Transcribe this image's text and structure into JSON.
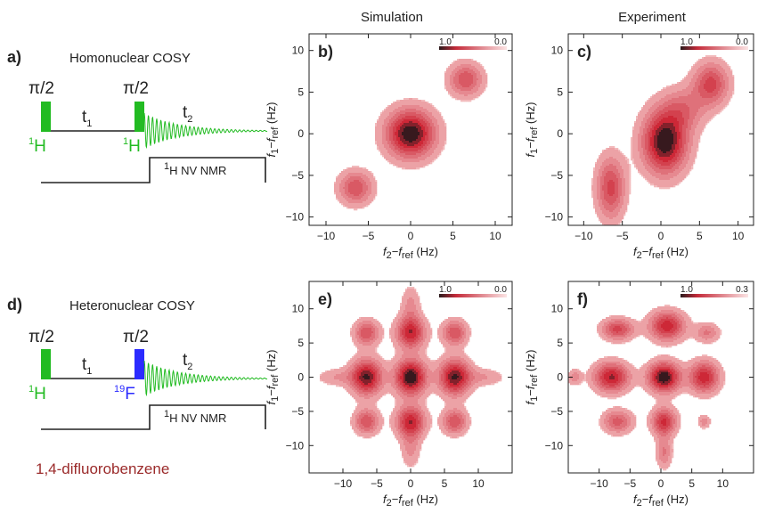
{
  "columns": {
    "simulation": "Simulation",
    "experiment": "Experiment"
  },
  "pulse_sequences": [
    {
      "label": "a)",
      "title": "Homonuclear COSY",
      "pulse1": {
        "angle": "π/2",
        "nucleus_mass": "1",
        "nucleus": "H",
        "color": "#22bb22"
      },
      "pulse2": {
        "angle": "π/2",
        "nucleus_mass": "1",
        "nucleus": "H",
        "color": "#22bb22"
      },
      "delay": "t",
      "delay_sub": "1",
      "acq": "t",
      "acq_sub": "2",
      "detect_mass": "1",
      "detect_text": "H NV NMR"
    },
    {
      "label": "d)",
      "title": "Heteronuclear COSY",
      "pulse1": {
        "angle": "π/2",
        "nucleus_mass": "1",
        "nucleus": "H",
        "color": "#22bb22"
      },
      "pulse2": {
        "angle": "π/2",
        "nucleus_mass": "19",
        "nucleus": "F",
        "color": "#2b2bff"
      },
      "delay": "t",
      "delay_sub": "1",
      "acq": "t",
      "acq_sub": "2",
      "detect_mass": "1",
      "detect_text": "H NV NMR"
    }
  ],
  "compound": "1,4-difluorobenzene",
  "axis_text": {
    "f1": "f",
    "f1_sub": "1",
    "f2": "f",
    "f2_sub": "2",
    "minus": "−",
    "ref": "f",
    "ref_sub": "ref",
    "unit": " (Hz)"
  },
  "chart_data": [
    {
      "type": "contour",
      "label": "b)",
      "colorbar": {
        "min": "1.0",
        "max": "0.0"
      },
      "xlim": [
        -12,
        12
      ],
      "ylim": [
        -11,
        12
      ],
      "xticks": [
        -10,
        -5,
        0,
        5,
        10
      ],
      "yticks": [
        -10,
        -5,
        0,
        5,
        10
      ],
      "peaks": [
        {
          "x": 0,
          "y": 0,
          "amp": 1.0,
          "sx": 2.0,
          "sy": 2.0
        },
        {
          "x": -6.5,
          "y": -6.5,
          "amp": 0.55,
          "sx": 1.4,
          "sy": 1.4
        },
        {
          "x": 6.5,
          "y": 6.5,
          "amp": 0.55,
          "sx": 1.4,
          "sy": 1.4
        }
      ]
    },
    {
      "type": "contour",
      "label": "c)",
      "colorbar": {
        "min": "1.0",
        "max": "0.0"
      },
      "xlim": [
        -12,
        12
      ],
      "ylim": [
        -11,
        12
      ],
      "xticks": [
        -10,
        -5,
        0,
        5,
        10
      ],
      "yticks": [
        -10,
        -5,
        0,
        5,
        10
      ],
      "peaks": [
        {
          "x": 0.5,
          "y": -1,
          "amp": 1.0,
          "sx": 2.0,
          "sy": 2.6
        },
        {
          "x": -6.5,
          "y": -6.5,
          "amp": 0.6,
          "sx": 1.3,
          "sy": 2.6
        },
        {
          "x": 6.5,
          "y": 6,
          "amp": 0.6,
          "sx": 1.6,
          "sy": 1.8
        },
        {
          "x": 3,
          "y": 3,
          "amp": 0.35,
          "sx": 2.0,
          "sy": 1.8
        }
      ]
    },
    {
      "type": "contour",
      "label": "e)",
      "colorbar": {
        "min": "1.0",
        "max": "0.0"
      },
      "xlim": [
        -15,
        15
      ],
      "ylim": [
        -14,
        14
      ],
      "xticks": [
        -10,
        -5,
        0,
        5,
        10
      ],
      "yticks": [
        -10,
        -5,
        0,
        5,
        10
      ],
      "peaks": [
        {
          "x": -6.5,
          "y": 0,
          "amp": 0.9,
          "sx": 1.6,
          "sy": 1.8
        },
        {
          "x": 0,
          "y": 0,
          "amp": 1.0,
          "sx": 1.6,
          "sy": 1.8
        },
        {
          "x": 6.5,
          "y": 0,
          "amp": 0.9,
          "sx": 1.6,
          "sy": 1.8
        },
        {
          "x": -6.5,
          "y": 6.5,
          "amp": 0.55,
          "sx": 1.3,
          "sy": 1.3
        },
        {
          "x": 0,
          "y": 6.5,
          "amp": 0.75,
          "sx": 1.5,
          "sy": 1.6
        },
        {
          "x": 6.5,
          "y": 6.5,
          "amp": 0.55,
          "sx": 1.3,
          "sy": 1.3
        },
        {
          "x": -6.5,
          "y": -6.5,
          "amp": 0.55,
          "sx": 1.3,
          "sy": 1.3
        },
        {
          "x": 0,
          "y": -6.5,
          "amp": 0.75,
          "sx": 1.5,
          "sy": 1.6
        },
        {
          "x": 6.5,
          "y": -6.5,
          "amp": 0.55,
          "sx": 1.3,
          "sy": 1.3
        },
        {
          "x": 0,
          "y": 10.5,
          "amp": 0.25,
          "sx": 1.0,
          "sy": 2.0
        },
        {
          "x": 0,
          "y": -10.5,
          "amp": 0.25,
          "sx": 1.0,
          "sy": 2.0
        },
        {
          "x": -11,
          "y": 0,
          "amp": 0.22,
          "sx": 2.0,
          "sy": 0.9
        },
        {
          "x": 11,
          "y": 0,
          "amp": 0.22,
          "sx": 2.0,
          "sy": 0.9
        }
      ]
    },
    {
      "type": "contour",
      "label": "f)",
      "colorbar": {
        "min": "1.0",
        "max": "0.3"
      },
      "xlim": [
        -15,
        15
      ],
      "ylim": [
        -14,
        14
      ],
      "xticks": [
        -10,
        -5,
        0,
        5,
        10
      ],
      "yticks": [
        -10,
        -5,
        0,
        5,
        10
      ],
      "peaks": [
        {
          "x": -8,
          "y": 0,
          "amp": 0.8,
          "sx": 2.0,
          "sy": 1.5
        },
        {
          "x": 0.5,
          "y": 0,
          "amp": 1.0,
          "sx": 1.8,
          "sy": 1.5
        },
        {
          "x": 7,
          "y": 0,
          "amp": 0.75,
          "sx": 1.7,
          "sy": 1.6
        },
        {
          "x": -7,
          "y": 7,
          "amp": 0.6,
          "sx": 1.8,
          "sy": 1.1
        },
        {
          "x": 1,
          "y": 7.5,
          "amp": 0.75,
          "sx": 2.0,
          "sy": 1.5
        },
        {
          "x": 7.5,
          "y": 6.5,
          "amp": 0.35,
          "sx": 1.4,
          "sy": 1.0
        },
        {
          "x": -7,
          "y": -6.5,
          "amp": 0.5,
          "sx": 1.7,
          "sy": 1.2
        },
        {
          "x": 0.5,
          "y": -6.5,
          "amp": 0.7,
          "sx": 1.4,
          "sy": 1.4
        },
        {
          "x": 7,
          "y": -6.5,
          "amp": 0.3,
          "sx": 0.7,
          "sy": 0.7
        },
        {
          "x": 0.5,
          "y": -11,
          "amp": 0.35,
          "sx": 0.9,
          "sy": 1.6
        },
        {
          "x": -14,
          "y": 0,
          "amp": 0.3,
          "sx": 0.8,
          "sy": 0.8
        }
      ]
    }
  ]
}
